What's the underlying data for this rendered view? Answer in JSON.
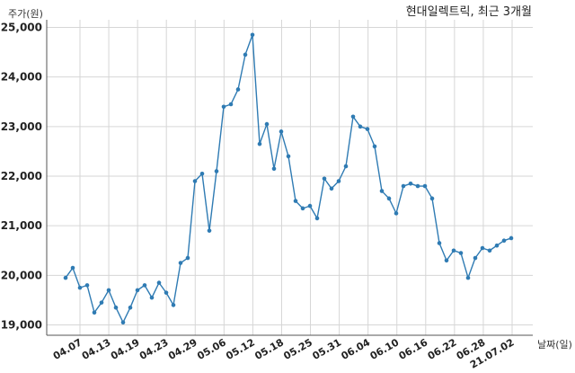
{
  "chart_data": {
    "type": "line",
    "title": "현대일렉트릭, 최근 3개월",
    "ylabel": "주가(원)",
    "xlabel": "날짜(일)",
    "ylim": [
      18800,
      25000
    ],
    "yticks": [
      19000,
      20000,
      21000,
      22000,
      23000,
      24000,
      25000
    ],
    "ytick_labels": [
      "19,000",
      "20,000",
      "21,000",
      "22,000",
      "23,000",
      "24,000",
      "25,000"
    ],
    "xtick_labels": [
      "04.07",
      "04.13",
      "04.19",
      "04.23",
      "04.29",
      "05.06",
      "05.12",
      "05.18",
      "05.25",
      "05.31",
      "06.04",
      "06.10",
      "06.16",
      "06.22",
      "06.28",
      "21.07.02"
    ],
    "grid": true,
    "series": [
      {
        "color": "#2f7bb3",
        "values": [
          19950,
          20150,
          19750,
          19800,
          19250,
          19450,
          19700,
          19350,
          19050,
          19350,
          19700,
          19800,
          19550,
          19850,
          19650,
          19400,
          20250,
          20350,
          21900,
          22050,
          20900,
          22100,
          23400,
          23450,
          23750,
          24450,
          24850,
          22650,
          23050,
          22150,
          22900,
          22400,
          21500,
          21350,
          21400,
          21150,
          21950,
          21750,
          21900,
          22200,
          23200,
          23000,
          22950,
          22600,
          21700,
          21550,
          21250,
          21800,
          21850,
          21800,
          21800,
          21550,
          20650,
          20300,
          20500,
          20450,
          19950,
          20350,
          20550,
          20500,
          20600,
          20700,
          20750
        ]
      }
    ]
  }
}
